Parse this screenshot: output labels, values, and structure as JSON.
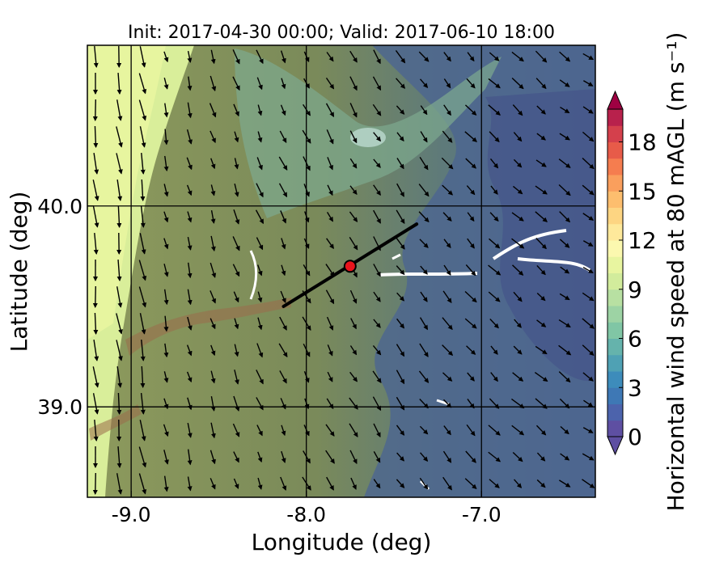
{
  "title": "Init: 2017-04-30 00:00; Valid: 2017-06-10 18:00",
  "map": {
    "xlabel": "Longitude (deg)",
    "ylabel": "Latitude (deg)",
    "xlim": [
      -9.25,
      -6.35
    ],
    "ylim": [
      38.55,
      40.8
    ],
    "xticks": [
      {
        "value": -9.0,
        "label": "-9.0"
      },
      {
        "value": -8.0,
        "label": "-8.0"
      },
      {
        "value": -7.0,
        "label": "-7.0"
      }
    ],
    "yticks": [
      {
        "value": 40.0,
        "label": "40.0"
      },
      {
        "value": 39.0,
        "label": "39.0"
      }
    ],
    "grid": true,
    "cross_section": {
      "start": [
        -8.13,
        39.5
      ],
      "end": [
        -7.37,
        39.91
      ]
    },
    "point": {
      "lon": -7.75,
      "lat": 39.7,
      "color": "#e8141c"
    },
    "field_description": "wind vectors over filled wind-speed contours with terrain shading"
  },
  "colorbar": {
    "label": "Horizontal wind speed at 80 mAGL (m s⁻¹)",
    "min": 0,
    "max": 20,
    "step": 1,
    "extend": "both",
    "ticks": [
      {
        "value": 0,
        "label": "0"
      },
      {
        "value": 3,
        "label": "3"
      },
      {
        "value": 6,
        "label": "6"
      },
      {
        "value": 9,
        "label": "9"
      },
      {
        "value": 12,
        "label": "12"
      },
      {
        "value": 15,
        "label": "15"
      },
      {
        "value": 18,
        "label": "18"
      }
    ],
    "colors": [
      "#5e4fa2",
      "#4c63ac",
      "#3e78b5",
      "#3d8cbb",
      "#4fa1b4",
      "#65b3ac",
      "#80c6a5",
      "#9dd3a4",
      "#b8e0a2",
      "#d2ec9c",
      "#e8f5a0",
      "#fbf8af",
      "#fee99b",
      "#fdd582",
      "#fdbe6e",
      "#fa9f5d",
      "#f57d4f",
      "#e75b49",
      "#d4404c",
      "#b8214c"
    ],
    "under_color": "#5e4fa2",
    "over_color": "#9e0142"
  }
}
